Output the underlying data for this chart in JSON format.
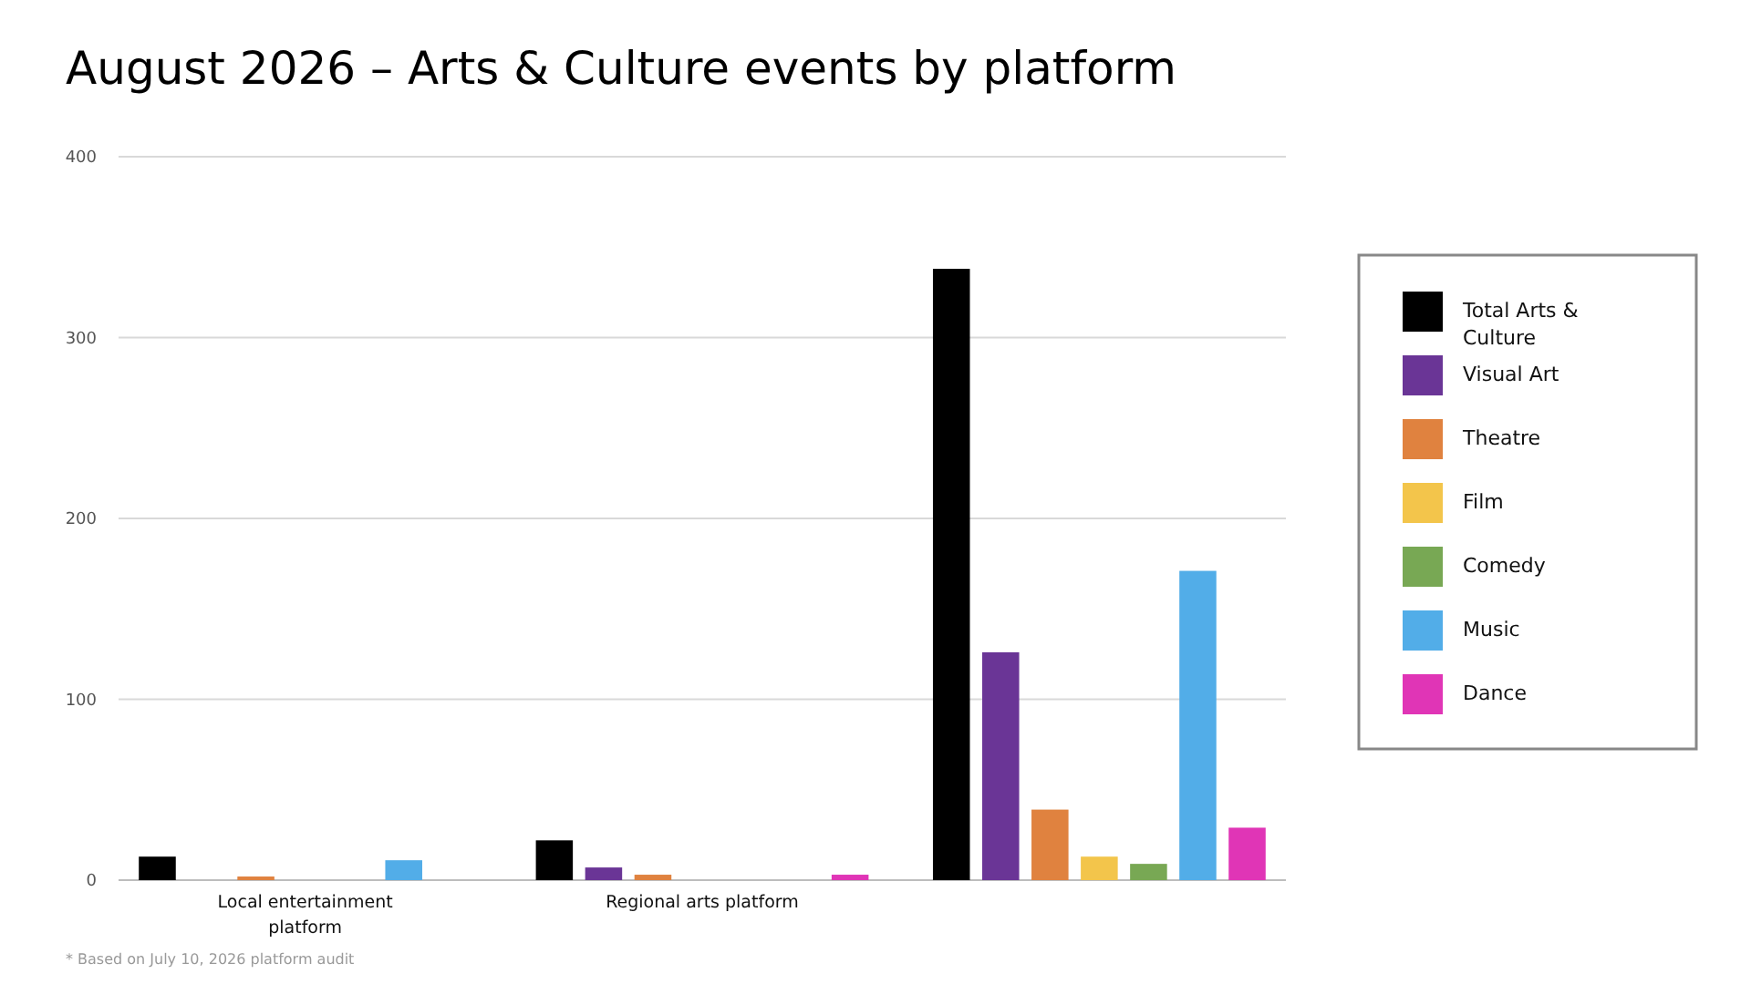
{
  "chart_data": {
    "type": "bar",
    "title": "August 2026 – Arts & Culture events by platform",
    "categories": [
      "Local entertainment platform",
      "Regional arts platform",
      null
    ],
    "series": [
      {
        "name": "Total Arts & Culture",
        "color": "#000000",
        "values": [
          13,
          22,
          338
        ]
      },
      {
        "name": "Visual Art",
        "color": "#6a3596",
        "values": [
          0,
          7,
          126
        ]
      },
      {
        "name": "Theatre",
        "color": "#e0823f",
        "values": [
          2,
          3,
          39
        ]
      },
      {
        "name": "Film",
        "color": "#f3c54b",
        "values": [
          0,
          0,
          13
        ]
      },
      {
        "name": "Comedy",
        "color": "#78a854",
        "values": [
          0,
          0,
          9
        ]
      },
      {
        "name": "Music",
        "color": "#52ade8",
        "values": [
          11,
          0,
          171
        ]
      },
      {
        "name": "Dance",
        "color": "#e035b6",
        "values": [
          0,
          3,
          29
        ]
      }
    ],
    "ylim": [
      0,
      400
    ],
    "yticks": [
      0,
      100,
      200,
      300,
      400
    ],
    "grid": "y",
    "legend": "right",
    "annotations": [
      "* Based on July 10, 2026 platform audit"
    ]
  }
}
